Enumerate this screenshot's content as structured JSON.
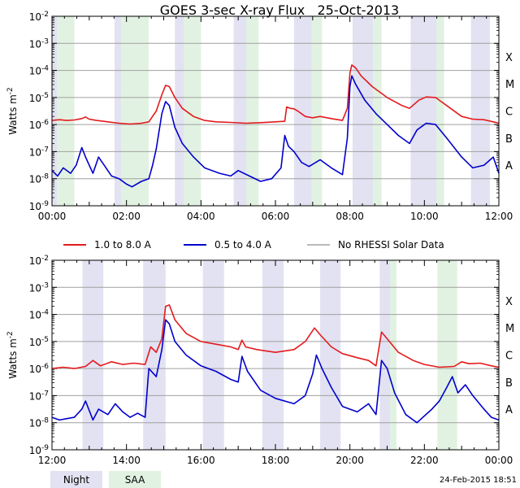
{
  "colors": {
    "long_channel": "#e41a1c",
    "short_channel": "#0000cc",
    "no_rhessi": "#909090",
    "night": "#e2e2f2",
    "saa": "#e2f2e2",
    "grid": "#a0a0a0"
  },
  "chart_data": {
    "type": "line",
    "title": "GOES 3-sec X-ray Flux   25-Oct-2013",
    "ylabel_main": "Watts m",
    "ylabel_exp": "-2",
    "y_scale": "log",
    "ylim_exp": [
      -9,
      -2
    ],
    "y_tick_labels": [
      {
        "exp": -2,
        "base": "10",
        "sup": "-2"
      },
      {
        "exp": -3,
        "base": "10",
        "sup": "-3"
      },
      {
        "exp": -4,
        "base": "10",
        "sup": "-4"
      },
      {
        "exp": -5,
        "base": "10",
        "sup": "-5"
      },
      {
        "exp": -6,
        "base": "10",
        "sup": "-6"
      },
      {
        "exp": -7,
        "base": "10",
        "sup": "-7"
      },
      {
        "exp": -8,
        "base": "10",
        "sup": "-8"
      },
      {
        "exp": -9,
        "base": "10",
        "sup": "-9"
      }
    ],
    "flare_classes": [
      {
        "label": "X",
        "exp": -4
      },
      {
        "label": "M",
        "exp": -5
      },
      {
        "label": "C",
        "exp": -6
      },
      {
        "label": "B",
        "exp": -7
      },
      {
        "label": "A",
        "exp": -8
      }
    ],
    "legend": [
      {
        "key": "long",
        "label": "1.0 to 8.0 A"
      },
      {
        "key": "short",
        "label": "0.5 to 4.0 A"
      },
      {
        "key": "norhessi",
        "label": "No RHESSI Solar Data"
      }
    ],
    "shading_legend": [
      {
        "key": "night",
        "label": "Night"
      },
      {
        "key": "saa",
        "label": "SAA"
      }
    ],
    "footer_timestamp": "24-Feb-2015 18:51",
    "panels": [
      {
        "id": "top",
        "x_range_hours": [
          0,
          12
        ],
        "x_ticks": [
          {
            "h": 0,
            "label": "00:00"
          },
          {
            "h": 2,
            "label": "02:00"
          },
          {
            "h": 4,
            "label": "04:00"
          },
          {
            "h": 6,
            "label": "06:00"
          },
          {
            "h": 8,
            "label": "08:00"
          },
          {
            "h": 10,
            "label": "10:00"
          },
          {
            "h": 12,
            "label": "12:00"
          }
        ],
        "night": [
          [
            0.0,
            0.13
          ],
          [
            1.68,
            2.3
          ],
          [
            3.3,
            3.55
          ],
          [
            4.88,
            5.22
          ],
          [
            6.5,
            6.97
          ],
          [
            8.07,
            8.62
          ],
          [
            9.63,
            10.32
          ],
          [
            11.25,
            11.76
          ]
        ],
        "saa": [
          [
            0.13,
            0.6
          ],
          [
            1.85,
            2.6
          ],
          [
            3.55,
            4.0
          ],
          [
            5.22,
            5.55
          ],
          [
            6.97,
            7.25
          ],
          [
            8.62,
            8.85
          ],
          [
            10.32,
            10.53
          ]
        ],
        "series": {
          "long": [
            [
              0,
              -5.85
            ],
            [
              0.2,
              -5.82
            ],
            [
              0.4,
              -5.85
            ],
            [
              0.6,
              -5.83
            ],
            [
              0.8,
              -5.78
            ],
            [
              0.9,
              -5.72
            ],
            [
              1.0,
              -5.8
            ],
            [
              1.2,
              -5.85
            ],
            [
              1.5,
              -5.9
            ],
            [
              1.8,
              -5.95
            ],
            [
              2.1,
              -5.98
            ],
            [
              2.4,
              -5.95
            ],
            [
              2.6,
              -5.9
            ],
            [
              2.8,
              -5.5
            ],
            [
              2.95,
              -4.9
            ],
            [
              3.05,
              -4.55
            ],
            [
              3.15,
              -4.6
            ],
            [
              3.3,
              -5.0
            ],
            [
              3.5,
              -5.4
            ],
            [
              3.8,
              -5.7
            ],
            [
              4.1,
              -5.85
            ],
            [
              4.4,
              -5.9
            ],
            [
              4.8,
              -5.92
            ],
            [
              5.2,
              -5.95
            ],
            [
              5.6,
              -5.93
            ],
            [
              6.0,
              -5.9
            ],
            [
              6.25,
              -5.88
            ],
            [
              6.3,
              -5.35
            ],
            [
              6.4,
              -5.4
            ],
            [
              6.5,
              -5.42
            ],
            [
              6.6,
              -5.5
            ],
            [
              6.8,
              -5.7
            ],
            [
              7.0,
              -5.75
            ],
            [
              7.2,
              -5.7
            ],
            [
              7.5,
              -5.78
            ],
            [
              7.8,
              -5.85
            ],
            [
              7.93,
              -5.4
            ],
            [
              8.0,
              -4.1
            ],
            [
              8.05,
              -3.8
            ],
            [
              8.15,
              -3.9
            ],
            [
              8.3,
              -4.2
            ],
            [
              8.6,
              -4.6
            ],
            [
              9.0,
              -5.0
            ],
            [
              9.4,
              -5.3
            ],
            [
              9.6,
              -5.4
            ],
            [
              9.85,
              -5.1
            ],
            [
              10.05,
              -4.98
            ],
            [
              10.3,
              -5.0
            ],
            [
              10.6,
              -5.3
            ],
            [
              11.0,
              -5.7
            ],
            [
              11.3,
              -5.8
            ],
            [
              11.6,
              -5.82
            ],
            [
              11.85,
              -5.9
            ],
            [
              12.0,
              -5.95
            ]
          ],
          "short": [
            [
              0,
              -7.7
            ],
            [
              0.15,
              -7.9
            ],
            [
              0.3,
              -7.6
            ],
            [
              0.5,
              -7.8
            ],
            [
              0.65,
              -7.5
            ],
            [
              0.8,
              -6.85
            ],
            [
              0.9,
              -7.2
            ],
            [
              1.0,
              -7.5
            ],
            [
              1.1,
              -7.8
            ],
            [
              1.25,
              -7.2
            ],
            [
              1.4,
              -7.5
            ],
            [
              1.6,
              -7.9
            ],
            [
              1.8,
              -8.0
            ],
            [
              2.0,
              -8.2
            ],
            [
              2.15,
              -8.3
            ],
            [
              2.4,
              -8.1
            ],
            [
              2.6,
              -8.0
            ],
            [
              2.7,
              -7.5
            ],
            [
              2.8,
              -6.9
            ],
            [
              2.95,
              -5.6
            ],
            [
              3.05,
              -5.15
            ],
            [
              3.15,
              -5.3
            ],
            [
              3.3,
              -6.1
            ],
            [
              3.5,
              -6.7
            ],
            [
              3.8,
              -7.2
            ],
            [
              4.1,
              -7.6
            ],
            [
              4.5,
              -7.8
            ],
            [
              4.8,
              -7.9
            ],
            [
              5.0,
              -7.7
            ],
            [
              5.3,
              -7.9
            ],
            [
              5.6,
              -8.1
            ],
            [
              5.9,
              -8.0
            ],
            [
              6.15,
              -7.6
            ],
            [
              6.25,
              -6.4
            ],
            [
              6.35,
              -6.8
            ],
            [
              6.5,
              -7.0
            ],
            [
              6.7,
              -7.4
            ],
            [
              6.9,
              -7.55
            ],
            [
              7.2,
              -7.3
            ],
            [
              7.5,
              -7.6
            ],
            [
              7.8,
              -7.85
            ],
            [
              7.93,
              -6.5
            ],
            [
              8.0,
              -4.6
            ],
            [
              8.05,
              -4.2
            ],
            [
              8.15,
              -4.5
            ],
            [
              8.4,
              -5.1
            ],
            [
              8.7,
              -5.6
            ],
            [
              9.0,
              -6.0
            ],
            [
              9.3,
              -6.4
            ],
            [
              9.6,
              -6.7
            ],
            [
              9.8,
              -6.2
            ],
            [
              10.05,
              -5.95
            ],
            [
              10.3,
              -6.0
            ],
            [
              10.6,
              -6.5
            ],
            [
              11.0,
              -7.2
            ],
            [
              11.3,
              -7.6
            ],
            [
              11.6,
              -7.5
            ],
            [
              11.85,
              -7.2
            ],
            [
              12.0,
              -7.8
            ]
          ]
        }
      },
      {
        "id": "bottom",
        "x_range_hours": [
          12,
          24
        ],
        "x_ticks": [
          {
            "h": 12,
            "label": "12:00"
          },
          {
            "h": 14,
            "label": "14:00"
          },
          {
            "h": 16,
            "label": "16:00"
          },
          {
            "h": 18,
            "label": "18:00"
          },
          {
            "h": 20,
            "label": "20:00"
          },
          {
            "h": 22,
            "label": "22:00"
          },
          {
            "h": 24,
            "label": "00:00"
          }
        ],
        "night": [
          [
            12.82,
            13.38
          ],
          [
            14.45,
            15.05
          ],
          [
            16.05,
            16.62
          ],
          [
            17.65,
            18.22
          ],
          [
            19.2,
            19.75
          ],
          [
            20.8,
            21.08
          ]
        ],
        "saa": [
          [
            21.08,
            21.25
          ],
          [
            22.35,
            22.88
          ]
        ],
        "series": {
          "long": [
            [
              12,
              -6.0
            ],
            [
              12.3,
              -5.95
            ],
            [
              12.6,
              -6.0
            ],
            [
              12.9,
              -5.92
            ],
            [
              13.1,
              -5.7
            ],
            [
              13.3,
              -5.9
            ],
            [
              13.6,
              -5.75
            ],
            [
              13.9,
              -5.85
            ],
            [
              14.2,
              -5.8
            ],
            [
              14.5,
              -5.85
            ],
            [
              14.65,
              -5.2
            ],
            [
              14.8,
              -5.4
            ],
            [
              14.95,
              -4.9
            ],
            [
              15.05,
              -3.7
            ],
            [
              15.15,
              -3.65
            ],
            [
              15.3,
              -4.2
            ],
            [
              15.6,
              -4.7
            ],
            [
              16.0,
              -5.0
            ],
            [
              16.4,
              -5.1
            ],
            [
              16.8,
              -5.2
            ],
            [
              17.0,
              -5.3
            ],
            [
              17.1,
              -4.95
            ],
            [
              17.2,
              -5.2
            ],
            [
              17.5,
              -5.3
            ],
            [
              18.0,
              -5.4
            ],
            [
              18.5,
              -5.3
            ],
            [
              18.8,
              -5.0
            ],
            [
              19.05,
              -4.5
            ],
            [
              19.2,
              -4.75
            ],
            [
              19.5,
              -5.2
            ],
            [
              19.8,
              -5.45
            ],
            [
              20.2,
              -5.6
            ],
            [
              20.5,
              -5.7
            ],
            [
              20.7,
              -5.9
            ],
            [
              20.85,
              -4.65
            ],
            [
              21.0,
              -4.9
            ],
            [
              21.3,
              -5.4
            ],
            [
              21.7,
              -5.7
            ],
            [
              22.0,
              -5.85
            ],
            [
              22.4,
              -5.95
            ],
            [
              22.8,
              -5.92
            ],
            [
              23.0,
              -5.75
            ],
            [
              23.2,
              -5.82
            ],
            [
              23.5,
              -5.8
            ],
            [
              23.8,
              -5.9
            ],
            [
              24.0,
              -5.95
            ]
          ],
          "short": [
            [
              12,
              -7.8
            ],
            [
              12.2,
              -7.9
            ],
            [
              12.4,
              -7.85
            ],
            [
              12.6,
              -7.8
            ],
            [
              12.8,
              -7.5
            ],
            [
              12.9,
              -7.2
            ],
            [
              13.1,
              -7.9
            ],
            [
              13.25,
              -7.5
            ],
            [
              13.5,
              -7.7
            ],
            [
              13.7,
              -7.3
            ],
            [
              13.9,
              -7.6
            ],
            [
              14.1,
              -7.8
            ],
            [
              14.3,
              -7.65
            ],
            [
              14.5,
              -7.8
            ],
            [
              14.6,
              -6.0
            ],
            [
              14.8,
              -6.3
            ],
            [
              14.95,
              -5.3
            ],
            [
              15.05,
              -4.2
            ],
            [
              15.15,
              -4.35
            ],
            [
              15.3,
              -5.0
            ],
            [
              15.6,
              -5.5
            ],
            [
              16.0,
              -5.9
            ],
            [
              16.4,
              -6.1
            ],
            [
              16.8,
              -6.4
            ],
            [
              17.0,
              -6.5
            ],
            [
              17.1,
              -5.55
            ],
            [
              17.25,
              -6.1
            ],
            [
              17.6,
              -6.8
            ],
            [
              18.0,
              -7.1
            ],
            [
              18.5,
              -7.3
            ],
            [
              18.8,
              -7.0
            ],
            [
              19.0,
              -6.2
            ],
            [
              19.1,
              -5.5
            ],
            [
              19.25,
              -6.0
            ],
            [
              19.5,
              -6.7
            ],
            [
              19.8,
              -7.4
            ],
            [
              20.2,
              -7.6
            ],
            [
              20.5,
              -7.3
            ],
            [
              20.7,
              -7.7
            ],
            [
              20.85,
              -5.7
            ],
            [
              21.0,
              -6.0
            ],
            [
              21.2,
              -6.9
            ],
            [
              21.5,
              -7.7
            ],
            [
              21.8,
              -8.0
            ],
            [
              22.2,
              -7.5
            ],
            [
              22.4,
              -7.2
            ],
            [
              22.6,
              -6.7
            ],
            [
              22.75,
              -6.3
            ],
            [
              22.9,
              -6.9
            ],
            [
              23.1,
              -6.6
            ],
            [
              23.3,
              -7.0
            ],
            [
              23.6,
              -7.5
            ],
            [
              23.8,
              -7.8
            ],
            [
              24.0,
              -7.9
            ]
          ]
        }
      }
    ]
  }
}
